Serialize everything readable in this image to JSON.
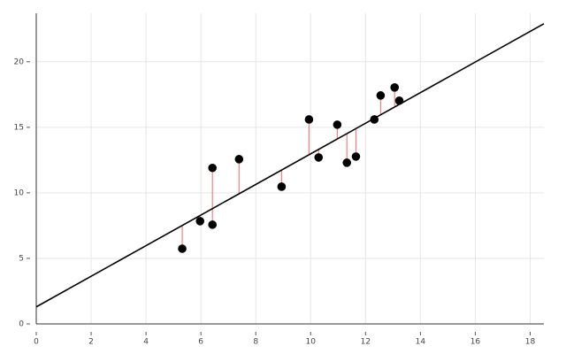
{
  "chart_data": {
    "type": "scatter",
    "points": {
      "color": "#000000",
      "x": [
        5.32,
        5.97,
        6.42,
        6.42,
        7.39,
        8.94,
        9.94,
        10.29,
        10.97,
        11.32,
        11.65,
        12.32,
        12.55,
        13.06,
        13.23
      ],
      "values": [
        5.74,
        7.84,
        11.9,
        7.57,
        12.57,
        10.47,
        15.6,
        12.7,
        15.2,
        12.3,
        12.77,
        15.6,
        17.43,
        18.04,
        17.03
      ]
    },
    "fit_line": {
      "color": "#000000",
      "x": [
        0,
        18.5
      ],
      "values": [
        1.3,
        22.9
      ]
    },
    "residual_color": "#f08080",
    "xlim": [
      0,
      18.5
    ],
    "ylim": [
      0,
      23.7
    ],
    "xticks": [
      0,
      2,
      4,
      6,
      8,
      10,
      12,
      14,
      16,
      18
    ],
    "yticks": [
      0,
      5,
      10,
      15,
      20
    ],
    "grid": true
  }
}
